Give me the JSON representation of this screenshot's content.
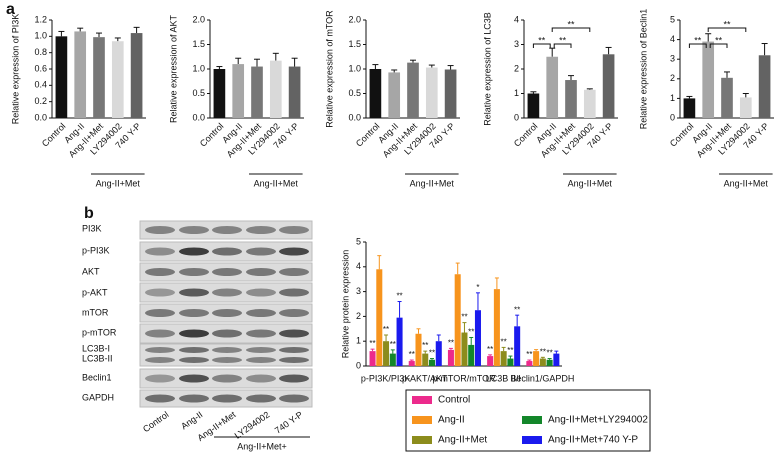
{
  "panel_labels": [
    "a",
    "b"
  ],
  "chart_data": [
    {
      "type": "bar",
      "ylabel": "Relative expression of PI3K",
      "categories": [
        "Control",
        "Ang-II",
        "Ang-II+Met",
        "LY294002",
        "740 Y-P"
      ],
      "values": [
        1.0,
        1.06,
        0.99,
        0.94,
        1.04
      ],
      "errors": [
        0.06,
        0.04,
        0.05,
        0.04,
        0.07
      ],
      "colors": [
        "#111111",
        "#a6a6a6",
        "#777777",
        "#d9d9d9",
        "#636363"
      ],
      "ylim": [
        0,
        1.2
      ],
      "yticks": [
        {
          "value": 0,
          "label": "0.0"
        },
        {
          "value": 0.2,
          "label": "0.2"
        },
        {
          "value": 0.4,
          "label": "0.4"
        },
        {
          "value": 0.6,
          "label": "0.6"
        },
        {
          "value": 0.8,
          "label": "0.8"
        },
        {
          "value": 1,
          "label": "1.0"
        },
        {
          "value": 1.2,
          "label": "1.2"
        }
      ],
      "group_label": "Ang-II+Met"
    },
    {
      "type": "bar",
      "ylabel": "Relative expression of AKT",
      "categories": [
        "Control",
        "Ang-II",
        "Ang-II+Met",
        "LY294002",
        "740 Y-P"
      ],
      "values": [
        1.0,
        1.1,
        1.05,
        1.17,
        1.05
      ],
      "errors": [
        0.05,
        0.12,
        0.15,
        0.15,
        0.17
      ],
      "colors": [
        "#111111",
        "#a6a6a6",
        "#777777",
        "#d9d9d9",
        "#636363"
      ],
      "ylim": [
        0,
        2
      ],
      "yticks": [
        {
          "value": 0,
          "label": "0.0"
        },
        0.5,
        {
          "value": 1,
          "label": "1.0"
        },
        1.5,
        {
          "value": 2,
          "label": "2.0"
        }
      ],
      "group_label": "Ang-II+Met"
    },
    {
      "type": "bar",
      "ylabel": "Relative expression of mTOR",
      "categories": [
        "Control",
        "Ang-II",
        "Ang-II+Met",
        "LY294002",
        "740 Y-P"
      ],
      "values": [
        1.0,
        0.93,
        1.13,
        1.03,
        0.99
      ],
      "errors": [
        0.09,
        0.05,
        0.05,
        0.05,
        0.08
      ],
      "colors": [
        "#111111",
        "#a6a6a6",
        "#777777",
        "#d9d9d9",
        "#636363"
      ],
      "ylim": [
        0,
        2
      ],
      "yticks": [
        {
          "value": 0,
          "label": "0.0"
        },
        0.5,
        {
          "value": 1,
          "label": "1.0"
        },
        1.5,
        {
          "value": 2,
          "label": "2.0"
        }
      ],
      "group_label": "Ang-II+Met"
    },
    {
      "type": "bar",
      "ylabel": "Relative expression of LC3B",
      "categories": [
        "Control",
        "Ang-II",
        "Ang-II+Met",
        "LY294002",
        "740 Y-P"
      ],
      "values": [
        1.0,
        2.5,
        1.55,
        1.15,
        2.6
      ],
      "errors": [
        0.07,
        0.35,
        0.18,
        0.04,
        0.28
      ],
      "colors": [
        "#111111",
        "#a6a6a6",
        "#777777",
        "#d9d9d9",
        "#636363"
      ],
      "ylim": [
        0,
        4
      ],
      "yticks": [
        0,
        1,
        2,
        3,
        4
      ],
      "brackets": [
        "**",
        "**",
        "**"
      ],
      "group_label": "Ang-II+Met"
    },
    {
      "type": "bar",
      "ylabel": "Relative expression of Beclin1",
      "categories": [
        "Control",
        "Ang-II",
        "Ang-II+Met",
        "LY294002",
        "740 Y-P"
      ],
      "values": [
        1.0,
        3.9,
        2.05,
        1.05,
        3.2
      ],
      "errors": [
        0.1,
        0.4,
        0.3,
        0.2,
        0.6
      ],
      "colors": [
        "#111111",
        "#a6a6a6",
        "#777777",
        "#d9d9d9",
        "#636363"
      ],
      "ylim": [
        0,
        5
      ],
      "yticks": [
        0,
        1,
        2,
        3,
        4,
        5
      ],
      "brackets": [
        "**",
        "**",
        "**"
      ],
      "group_label": "Ang-II+Met"
    },
    {
      "type": "grouped-bar",
      "ylabel": "Relative protein expression",
      "categories": [
        "p-PI3K/PI3K",
        "p-AKT/AKT",
        "p-mTOR/mTOR",
        "LC3B II/I",
        "Beclin1/GAPDH"
      ],
      "ylim": [
        0,
        5
      ],
      "yticks": [
        0,
        1,
        2,
        3,
        4,
        5
      ],
      "series": [
        {
          "name": "Control",
          "color": "#ec2a8c",
          "values": [
            0.6,
            0.2,
            0.65,
            0.4,
            0.2
          ],
          "errors": [
            0.08,
            0.04,
            0.06,
            0.05,
            0.04
          ],
          "stars": [
            "**",
            "**",
            "**",
            "**",
            "**"
          ]
        },
        {
          "name": "Ang-II",
          "color": "#f7941d",
          "values": [
            3.9,
            1.3,
            3.7,
            3.1,
            0.6
          ],
          "errors": [
            0.55,
            0.2,
            0.45,
            0.45,
            0.06
          ],
          "stars": [
            null,
            null,
            null,
            null,
            null
          ]
        },
        {
          "name": "Ang-II+Met",
          "color": "#8c8c1c",
          "values": [
            1.0,
            0.5,
            1.35,
            0.6,
            0.3
          ],
          "errors": [
            0.25,
            0.1,
            0.4,
            0.15,
            0.05
          ],
          "stars": [
            "**",
            "**",
            "**",
            "**",
            "**"
          ]
        },
        {
          "name": "Ang-II+Met+LY294002",
          "color": "#13862a",
          "values": [
            0.5,
            0.25,
            0.85,
            0.3,
            0.25
          ],
          "errors": [
            0.15,
            0.05,
            0.3,
            0.1,
            0.05
          ],
          "stars": [
            "**",
            "**",
            "**",
            "**",
            "**"
          ]
        },
        {
          "name": "Ang-II+Met+740 Y-P",
          "color": "#1a1aee",
          "values": [
            1.95,
            1.0,
            2.25,
            1.6,
            0.5
          ],
          "errors": [
            0.65,
            0.25,
            0.7,
            0.45,
            0.1
          ],
          "stars": [
            "**",
            null,
            "*",
            "**",
            null
          ]
        }
      ]
    }
  ],
  "blot": {
    "rows": [
      "PI3K",
      "p-PI3K",
      "AKT",
      "p-AKT",
      "mTOR",
      "p-mTOR",
      "LC3B-I",
      "LC3B-II",
      "Beclin1",
      "GAPDH"
    ],
    "lanes": [
      "Control",
      "Ang-II",
      "Ang-II+Met",
      "LY294002",
      "740 Y-P"
    ],
    "group_label": "Ang-II+Met+"
  }
}
